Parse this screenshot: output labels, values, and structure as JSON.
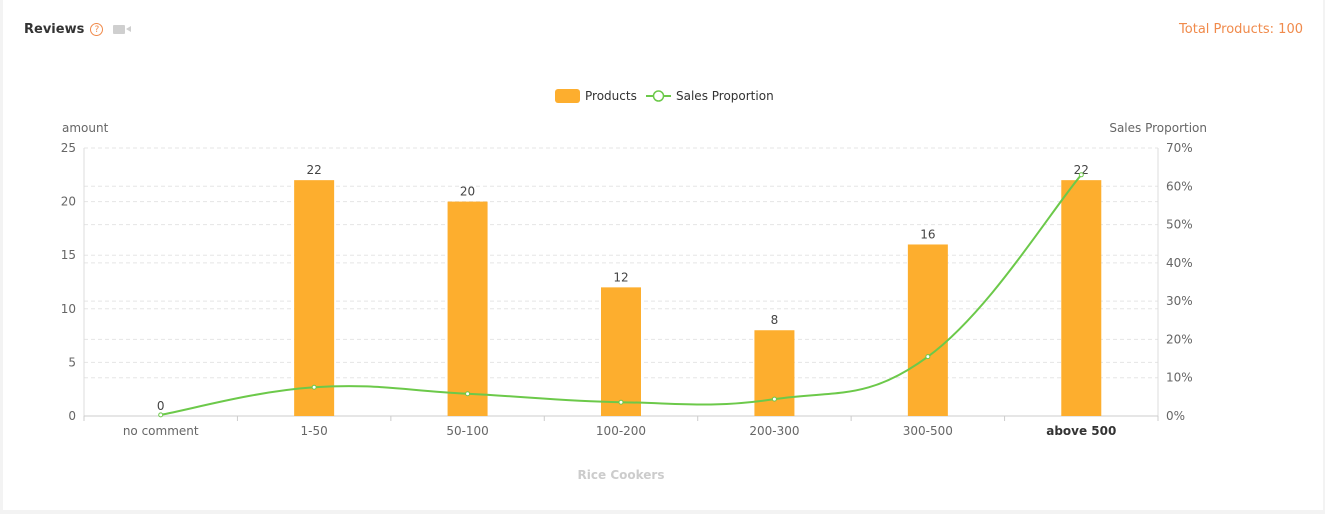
{
  "header": {
    "title": "Reviews",
    "help_icon": "help-circle-icon",
    "help_glyph": "?",
    "video_icon": "video-camera-icon",
    "total_label": "Total Products: 100"
  },
  "colors": {
    "bar": "#fdae2e",
    "line": "#6cc94a",
    "accent": "#f08a4b",
    "axis_text": "#666666",
    "grid": "#e5e5e5"
  },
  "chart_data": {
    "type": "bar",
    "categories": [
      "no comment",
      "1-50",
      "50-100",
      "100-200",
      "200-300",
      "300-500",
      "above 500"
    ],
    "series": [
      {
        "name": "Products",
        "type": "bar",
        "axis": "left",
        "values": [
          0,
          22,
          20,
          12,
          8,
          16,
          22
        ]
      },
      {
        "name": "Sales Proportion",
        "type": "line",
        "axis": "right",
        "smooth": true,
        "values": [
          0.3,
          7.5,
          5.8,
          3.6,
          4.4,
          15.5,
          63
        ]
      }
    ],
    "data_labels": [
      "0",
      "22",
      "20",
      "12",
      "8",
      "16",
      "22"
    ],
    "ylabel": "amount",
    "ylim": [
      0,
      25
    ],
    "yticks": [
      "0",
      "5",
      "10",
      "15",
      "20",
      "25"
    ],
    "y2label": "Sales Proportion",
    "y2lim": [
      0,
      70
    ],
    "y2ticks": [
      "0%",
      "10%",
      "20%",
      "30%",
      "40%",
      "50%",
      "60%",
      "70%"
    ],
    "xlabel": "Rice Cookers",
    "legend_position": "top-center",
    "grid": true
  }
}
